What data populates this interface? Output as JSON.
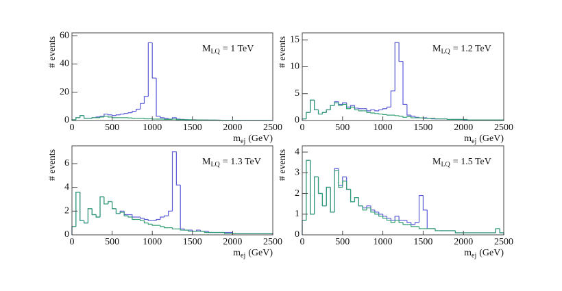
{
  "chart_data": [
    {
      "type": "histogram",
      "annotation": [
        "M",
        "LQ",
        "= 1 TeV"
      ],
      "xlabel": [
        "m",
        "ej",
        "(GeV)"
      ],
      "ylabel": "# events",
      "bins": [
        0,
        50,
        100,
        150,
        200,
        250,
        300,
        350,
        400,
        450,
        500,
        550,
        600,
        650,
        700,
        750,
        800,
        850,
        900,
        950,
        1000,
        1050,
        1100,
        1150,
        1200,
        1250,
        1300,
        1350,
        1400,
        1450,
        1500,
        1550,
        1600,
        1650,
        1700,
        1750,
        1800,
        1850,
        1900,
        1950,
        2000,
        2050,
        2100,
        2150,
        2200,
        2250,
        2300,
        2350,
        2400,
        2450,
        2500
      ],
      "series": [
        {
          "color": "#5a5ad8",
          "values": [
            0.5,
            2,
            3.5,
            1.5,
            1.5,
            2,
            2.5,
            3,
            4.5,
            4,
            3.5,
            4,
            4.5,
            5,
            5.5,
            6.5,
            8,
            12,
            17,
            55,
            30,
            3,
            2,
            1.5,
            1,
            2,
            1,
            0.8,
            0.6,
            0.5,
            0.5,
            0.4,
            0.4,
            0.4,
            0.3,
            0.3,
            0.3,
            0.2,
            0.2,
            0.2,
            0.2,
            0.2,
            0.1,
            0.1,
            0.1,
            0.1,
            0.1,
            0.1,
            0.1,
            0.1
          ]
        },
        {
          "color": "#2e9e70",
          "values": [
            0.5,
            2,
            3.5,
            1.5,
            1.5,
            2,
            2,
            2.5,
            3,
            2.5,
            2,
            2,
            2,
            2,
            1.8,
            1.5,
            1.5,
            1.5,
            1.2,
            1.2,
            1,
            1,
            1,
            0.8,
            0.8,
            1,
            0.6,
            0.6,
            0.5,
            0.5,
            0.4,
            0.4,
            0.4,
            0.3,
            0.3,
            0.3,
            0.2,
            0.2,
            0.2,
            0.2,
            0.2,
            0.1,
            0.1,
            0.1,
            0.1,
            0.1,
            0.1,
            0.1,
            0.1,
            0.1
          ]
        }
      ],
      "xlim": [
        0,
        2500
      ],
      "ylim": [
        0,
        62
      ],
      "xticks": [
        0,
        500,
        1000,
        1500,
        2000,
        2500
      ],
      "yticks": [
        0,
        20,
        40,
        60
      ]
    },
    {
      "type": "histogram",
      "annotation": [
        "M",
        "LQ",
        "= 1.2 TeV"
      ],
      "xlabel": [
        "m",
        "ej",
        "(GeV)"
      ],
      "ylabel": "# events",
      "bins": [
        0,
        50,
        100,
        150,
        200,
        250,
        300,
        350,
        400,
        450,
        500,
        550,
        600,
        650,
        700,
        750,
        800,
        850,
        900,
        950,
        1000,
        1050,
        1100,
        1150,
        1200,
        1250,
        1300,
        1350,
        1400,
        1450,
        1500,
        1550,
        1600,
        1650,
        1700,
        1750,
        1800,
        1850,
        1900,
        1950,
        2000,
        2050,
        2100,
        2150,
        2200,
        2250,
        2300,
        2350,
        2400,
        2450,
        2500
      ],
      "series": [
        {
          "color": "#5a5ad8",
          "values": [
            0.3,
            1.5,
            3.8,
            2,
            1.2,
            1.5,
            2,
            2.8,
            3.5,
            3,
            3.3,
            2.5,
            2.8,
            2.3,
            2.2,
            2.2,
            1.8,
            2,
            1.8,
            2,
            2.2,
            2.5,
            5.5,
            14.5,
            11,
            3,
            1,
            0.8,
            0.6,
            0.5,
            0.5,
            0.4,
            0.4,
            0.3,
            0.3,
            0.3,
            0.2,
            0.2,
            0.2,
            0.2,
            0.1,
            0.1,
            0.1,
            0.1,
            0.1,
            0.1,
            0.1,
            0.1,
            0.1,
            0.1
          ]
        },
        {
          "color": "#2e9e70",
          "values": [
            0.3,
            1.5,
            3.8,
            2,
            1.2,
            1.5,
            2,
            2.8,
            3.3,
            2.8,
            3,
            2.2,
            2.5,
            2,
            1.8,
            1.8,
            1.5,
            1.4,
            1.3,
            1.2,
            1.1,
            1,
            1,
            0.9,
            0.8,
            0.6,
            0.7,
            0.5,
            0.5,
            0.5,
            0.4,
            0.4,
            0.3,
            0.3,
            0.3,
            0.3,
            0.2,
            0.2,
            0.2,
            0.2,
            0.2,
            0.1,
            0.1,
            0.1,
            0.1,
            0.1,
            0.1,
            0.1,
            0.1,
            0.1
          ]
        }
      ],
      "xlim": [
        0,
        2500
      ],
      "ylim": [
        0,
        16.3
      ],
      "xticks": [
        0,
        500,
        1000,
        1500,
        2000,
        2500
      ],
      "yticks": [
        0,
        5,
        10,
        15
      ]
    },
    {
      "type": "histogram",
      "annotation": [
        "M",
        "LQ",
        "= 1.3 TeV"
      ],
      "xlabel": [
        "m",
        "ej",
        "(GeV)"
      ],
      "ylabel": "# events",
      "bins": [
        0,
        50,
        100,
        150,
        200,
        250,
        300,
        350,
        400,
        450,
        500,
        550,
        600,
        650,
        700,
        750,
        800,
        850,
        900,
        950,
        1000,
        1050,
        1100,
        1150,
        1200,
        1250,
        1300,
        1350,
        1400,
        1450,
        1500,
        1550,
        1600,
        1650,
        1700,
        1750,
        1800,
        1850,
        1900,
        1950,
        2000,
        2050,
        2100,
        2150,
        2200,
        2250,
        2300,
        2350,
        2400,
        2450,
        2500
      ],
      "series": [
        {
          "color": "#5a5ad8",
          "values": [
            0.7,
            3.6,
            1.2,
            1,
            2.2,
            1.7,
            1.5,
            3.2,
            2.6,
            2.8,
            2.2,
            1.8,
            2,
            1.7,
            1.7,
            1.5,
            1.5,
            1.4,
            1.3,
            1.2,
            1.2,
            1.3,
            1.5,
            1.6,
            2,
            7,
            4.2,
            0.5,
            0.4,
            0.4,
            0.3,
            0.4,
            0.3,
            0.3,
            0.2,
            0.2,
            0.2,
            0.2,
            0.2,
            0.2,
            0.1,
            0.1,
            0.1,
            0.1,
            0.1,
            0.1,
            0.1,
            0.1,
            0.1,
            0.1
          ]
        },
        {
          "color": "#2e9e70",
          "values": [
            0.7,
            3.6,
            1.2,
            1,
            2.2,
            1.7,
            1.5,
            3.2,
            2.6,
            2.8,
            2.2,
            1.8,
            1.9,
            1.6,
            1.5,
            1.3,
            1.3,
            1.2,
            1,
            0.9,
            0.8,
            0.8,
            0.7,
            0.6,
            0.6,
            0.5,
            0.5,
            0.4,
            0.4,
            0.3,
            0.3,
            0.3,
            0.3,
            0.2,
            0.2,
            0.2,
            0.2,
            0.2,
            0.1,
            0.1,
            0.1,
            0.1,
            0.1,
            0.1,
            0.1,
            0.1,
            0.1,
            0.1,
            0.1,
            0.1
          ]
        }
      ],
      "xlim": [
        0,
        2500
      ],
      "ylim": [
        0,
        7.5
      ],
      "xticks": [
        0,
        500,
        1000,
        1500,
        2000,
        2500
      ],
      "yticks": [
        0,
        2,
        4,
        6
      ]
    },
    {
      "type": "histogram",
      "annotation": [
        "M",
        "LQ",
        "= 1.5 TeV"
      ],
      "xlabel": [
        "m",
        "ej",
        "(GeV)"
      ],
      "ylabel": "# events",
      "bins": [
        0,
        50,
        100,
        150,
        200,
        250,
        300,
        350,
        400,
        450,
        500,
        550,
        600,
        650,
        700,
        750,
        800,
        850,
        900,
        950,
        1000,
        1050,
        1100,
        1150,
        1200,
        1250,
        1300,
        1350,
        1400,
        1450,
        1500,
        1550,
        1600,
        1650,
        1700,
        1750,
        1800,
        1850,
        1900,
        1950,
        2000,
        2050,
        2100,
        2150,
        2200,
        2250,
        2300,
        2350,
        2400,
        2450,
        2500
      ],
      "series": [
        {
          "color": "#5a5ad8",
          "values": [
            0.7,
            3.6,
            1,
            2.8,
            2,
            1.4,
            2.3,
            1.1,
            3.2,
            2.4,
            2.8,
            2.2,
            1.6,
            1.8,
            1.4,
            1.3,
            1.4,
            1.2,
            1.1,
            1,
            0.9,
            0.8,
            0.7,
            0.9,
            0.7,
            0.7,
            0.6,
            0.5,
            0.6,
            1.9,
            1.2,
            0.3,
            0.3,
            0.2,
            0.2,
            0.2,
            0.2,
            0.2,
            0.1,
            0.1,
            0.1,
            0.1,
            0.1,
            0.1,
            0.1,
            0.1,
            0.1,
            0.1,
            0.3,
            0.1
          ]
        },
        {
          "color": "#2e9e70",
          "values": [
            0.7,
            3.6,
            1,
            2.8,
            2,
            1.4,
            2.3,
            1.1,
            3.1,
            2.3,
            2.6,
            2.2,
            1.6,
            1.8,
            1.4,
            1.2,
            1.3,
            1.1,
            1,
            0.9,
            0.8,
            0.7,
            0.6,
            0.7,
            0.6,
            0.5,
            0.5,
            0.4,
            0.4,
            0.3,
            0.3,
            0.3,
            0.3,
            0.2,
            0.2,
            0.2,
            0.2,
            0.2,
            0.1,
            0.1,
            0.1,
            0.1,
            0.1,
            0.1,
            0.1,
            0.1,
            0.1,
            0.1,
            0.3,
            0.1
          ]
        }
      ],
      "xlim": [
        0,
        2500
      ],
      "ylim": [
        0,
        4.3
      ],
      "xticks": [
        0,
        500,
        1000,
        1500,
        2000,
        2500
      ],
      "yticks": [
        0,
        1,
        2,
        3,
        4
      ]
    }
  ]
}
